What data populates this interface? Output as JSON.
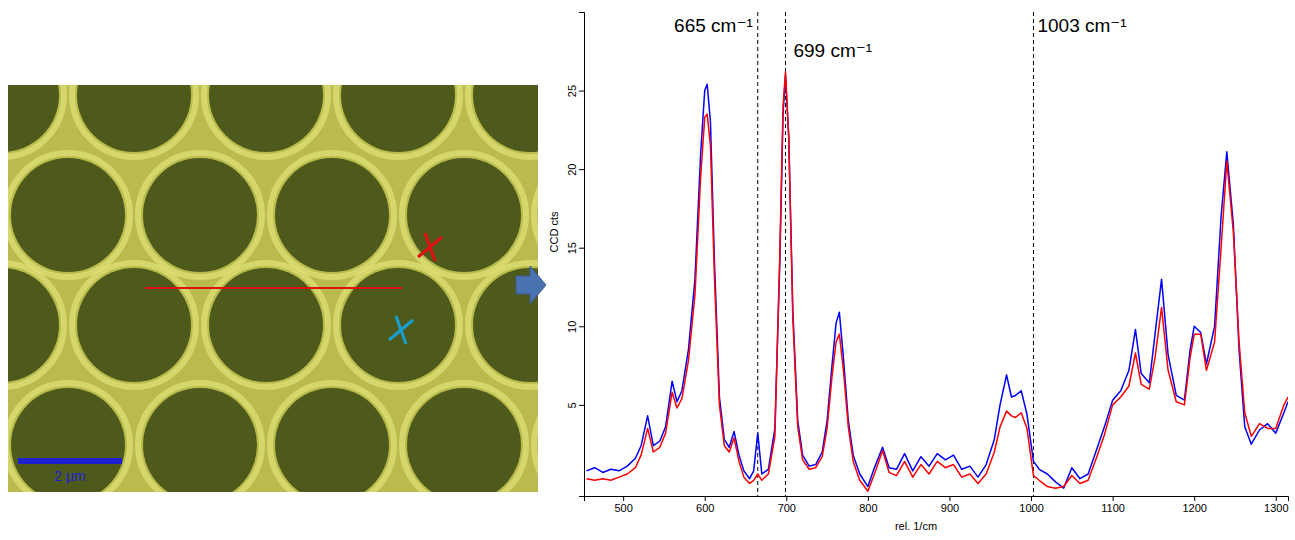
{
  "chart_data": {
    "type": "line",
    "x_label": "rel. 1/cm",
    "y_label": "CCD cts",
    "x": [
      455,
      465,
      475,
      485,
      495,
      505,
      515,
      522,
      530,
      537,
      545,
      552,
      560,
      566,
      572,
      580,
      588,
      595,
      600,
      603,
      607,
      612,
      618,
      624,
      630,
      636,
      642,
      648,
      655,
      660,
      665,
      670,
      678,
      686,
      692,
      696,
      699,
      703,
      708,
      714,
      720,
      728,
      736,
      744,
      750,
      756,
      761,
      765,
      770,
      776,
      782,
      790,
      800,
      808,
      818,
      826,
      835,
      845,
      855,
      865,
      875,
      885,
      895,
      905,
      915,
      925,
      935,
      945,
      955,
      962,
      970,
      976,
      981,
      988,
      995,
      1003,
      1010,
      1020,
      1030,
      1040,
      1050,
      1060,
      1070,
      1080,
      1090,
      1100,
      1110,
      1120,
      1128,
      1135,
      1145,
      1152,
      1160,
      1168,
      1178,
      1188,
      1195,
      1200,
      1208,
      1215,
      1225,
      1233,
      1240,
      1248,
      1255,
      1262,
      1270,
      1280,
      1290,
      1300,
      1310,
      1315
    ],
    "series": [
      {
        "color": "#0000ff",
        "values": [
          0.8,
          1.0,
          0.7,
          0.9,
          0.8,
          1.1,
          1.6,
          2.4,
          4.3,
          2.4,
          2.7,
          3.6,
          6.5,
          5.2,
          5.9,
          8.5,
          13.0,
          21.0,
          25.0,
          25.4,
          23.0,
          14.0,
          5.5,
          2.8,
          2.3,
          3.3,
          1.8,
          0.8,
          0.3,
          0.8,
          3.2,
          0.6,
          0.9,
          3.5,
          14.0,
          23.5,
          26.0,
          22.0,
          11.0,
          4.0,
          1.8,
          1.1,
          1.2,
          2.0,
          4.0,
          7.5,
          10.2,
          10.9,
          8.0,
          4.0,
          1.8,
          0.6,
          -0.2,
          1.0,
          2.3,
          1.0,
          0.9,
          1.9,
          0.8,
          1.7,
          1.1,
          1.9,
          1.5,
          1.8,
          0.9,
          1.1,
          0.4,
          1.2,
          2.8,
          5.0,
          6.9,
          5.5,
          5.6,
          5.9,
          4.4,
          1.4,
          0.9,
          0.6,
          0.1,
          -0.3,
          1.0,
          0.3,
          0.6,
          2.1,
          3.6,
          5.3,
          5.9,
          7.2,
          9.8,
          7.0,
          6.4,
          9.5,
          13.0,
          8.2,
          5.6,
          5.3,
          8.5,
          10.0,
          9.6,
          7.6,
          10.0,
          17.0,
          21.1,
          16.5,
          8.5,
          3.6,
          2.5,
          3.4,
          3.8,
          3.2,
          4.5,
          5.2
        ]
      },
      {
        "color": "#ff0000",
        "values": [
          0.3,
          0.2,
          0.3,
          0.2,
          0.4,
          0.6,
          1.0,
          1.8,
          3.5,
          2.0,
          2.3,
          3.2,
          5.8,
          4.8,
          5.4,
          7.8,
          12.0,
          19.5,
          23.3,
          23.5,
          21.5,
          13.0,
          5.0,
          2.4,
          2.0,
          2.9,
          1.4,
          0.4,
          0.0,
          0.2,
          0.6,
          0.2,
          0.6,
          3.0,
          14.5,
          24.0,
          26.2,
          22.0,
          10.5,
          3.6,
          1.5,
          0.9,
          1.0,
          1.7,
          3.5,
          6.8,
          9.0,
          9.5,
          7.2,
          3.6,
          1.4,
          0.2,
          -0.5,
          0.6,
          2.1,
          0.7,
          0.5,
          1.4,
          0.4,
          1.2,
          0.6,
          1.4,
          1.0,
          1.2,
          0.4,
          0.6,
          0.0,
          0.6,
          2.0,
          3.6,
          4.6,
          4.3,
          4.2,
          4.5,
          3.5,
          0.5,
          0.2,
          -0.2,
          -0.3,
          -0.2,
          0.5,
          0.0,
          0.2,
          1.6,
          3.1,
          5.0,
          5.5,
          6.2,
          8.3,
          6.3,
          6.0,
          8.0,
          11.2,
          7.2,
          5.2,
          5.0,
          8.0,
          9.5,
          9.5,
          7.2,
          9.0,
          15.0,
          20.5,
          16.0,
          9.0,
          4.5,
          3.0,
          3.8,
          3.5,
          3.5,
          5.0,
          5.5
        ]
      }
    ],
    "xlim": [
      452,
      1315
    ],
    "xticks": [
      500,
      600,
      700,
      800,
      900,
      1000,
      1100,
      1200,
      1300
    ],
    "ylim": [
      -0.8,
      30
    ],
    "yticks": [
      5,
      10,
      15,
      20,
      25
    ],
    "annotations": [
      {
        "x": 665,
        "label": "665 cm⁻¹"
      },
      {
        "x": 699,
        "label": "699 cm⁻¹"
      },
      {
        "x": 1003,
        "label": "1003 cm⁻¹"
      }
    ]
  },
  "micrograph": {
    "scale_bar": "2 µm"
  }
}
